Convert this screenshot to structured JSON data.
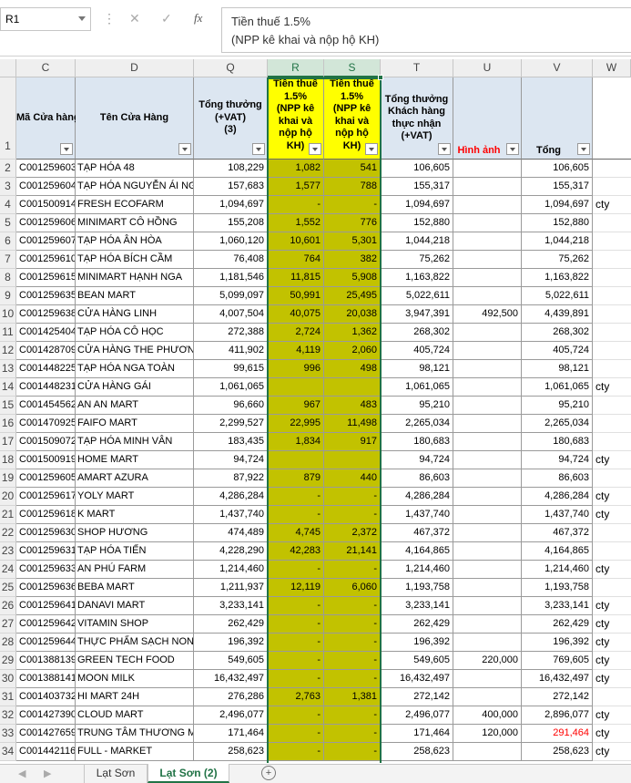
{
  "formula_bar": {
    "name_box": "R1",
    "fx_label": "fx",
    "formula_lines": [
      "Tiền thuế 1.5%",
      "(NPP kê khai và nộp hộ KH)"
    ]
  },
  "sheet": {
    "column_letters": [
      "C",
      "D",
      "Q",
      "R",
      "S",
      "T",
      "U",
      "V",
      "W"
    ],
    "header_row": {
      "n": "1",
      "cells": [
        [
          "Mã Cửa hàng"
        ],
        [
          "Tên Cửa Hàng"
        ],
        [
          "Tổng thưởng",
          "(+VAT)",
          "(3)"
        ],
        [
          "Tiền thuế",
          "1.5%",
          "(NPP kê",
          "khai và",
          "nộp hộ",
          "KH)"
        ],
        [
          "Tiền thuế",
          "1.5%",
          "(NPP kê",
          "khai và",
          "nộp hộ",
          "KH)"
        ],
        [
          "Tổng thưởng",
          "Khách hàng",
          "thực nhận",
          "(+VAT)"
        ],
        [
          "Hình ảnh"
        ],
        [
          "Tổng"
        ],
        null
      ],
      "red_header_color": "#ff0000"
    },
    "rows": [
      {
        "n": "2",
        "cells": [
          "C001259603",
          "TẠP HÓA 48",
          "108,229",
          "1,082",
          "541",
          "106,605",
          null,
          "106,605",
          null
        ]
      },
      {
        "n": "3",
        "cells": [
          "C001259604",
          "TẠP HÓA NGUYỄN ÁI NGH",
          "157,683",
          "1,577",
          "788",
          "155,317",
          null,
          "155,317",
          null
        ]
      },
      {
        "n": "4",
        "cells": [
          "C001500914",
          "FRESH ECOFARM",
          "1,094,697",
          "-",
          "-",
          "1,094,697",
          null,
          "1,094,697",
          "cty"
        ]
      },
      {
        "n": "5",
        "cells": [
          "C001259606",
          "MINIMART CÔ HỒNG",
          "155,208",
          "1,552",
          "776",
          "152,880",
          null,
          "152,880",
          null
        ]
      },
      {
        "n": "6",
        "cells": [
          "C001259607",
          "TẠP HÓA ÂN HÒA",
          "1,060,120",
          "10,601",
          "5,301",
          "1,044,218",
          null,
          "1,044,218",
          null
        ]
      },
      {
        "n": "7",
        "cells": [
          "C001259610",
          "TẠP HÓA BÍCH CẦM",
          "76,408",
          "764",
          "382",
          "75,262",
          null,
          "75,262",
          null
        ]
      },
      {
        "n": "8",
        "cells": [
          "C001259615",
          "MINIMART HẠNH NGA",
          "1,181,546",
          "11,815",
          "5,908",
          "1,163,822",
          null,
          "1,163,822",
          null
        ]
      },
      {
        "n": "9",
        "cells": [
          "C001259635",
          "BEAN MART",
          "5,099,097",
          "50,991",
          "25,495",
          "5,022,611",
          null,
          "5,022,611",
          null
        ]
      },
      {
        "n": "10",
        "cells": [
          "C001259638",
          "CỬA HÀNG LINH",
          "4,007,504",
          "40,075",
          "20,038",
          "3,947,391",
          "492,500",
          "4,439,891",
          null
        ]
      },
      {
        "n": "11",
        "cells": [
          "C001425404",
          "TẠP HÓA CÔ HỌC",
          "272,388",
          "2,724",
          "1,362",
          "268,302",
          null,
          "268,302",
          null
        ]
      },
      {
        "n": "12",
        "cells": [
          "C001428709",
          "CỬA HÀNG THE PHƯƠNG",
          "411,902",
          "4,119",
          "2,060",
          "405,724",
          null,
          "405,724",
          null
        ]
      },
      {
        "n": "13",
        "cells": [
          "C001448225",
          "TẠP HÓA NGA TOÀN",
          "99,615",
          "996",
          "498",
          "98,121",
          null,
          "98,121",
          null
        ]
      },
      {
        "n": "14",
        "cells": [
          "C001448231",
          "CỬA HÀNG GÁI",
          "1,061,065",
          null,
          null,
          "1,061,065",
          null,
          "1,061,065",
          "cty"
        ]
      },
      {
        "n": "15",
        "cells": [
          "C001454562",
          "AN AN MART",
          "96,660",
          "967",
          "483",
          "95,210",
          null,
          "95,210",
          null
        ]
      },
      {
        "n": "16",
        "cells": [
          "C001470925",
          "FAIFO MART",
          "2,299,527",
          "22,995",
          "11,498",
          "2,265,034",
          null,
          "2,265,034",
          null
        ]
      },
      {
        "n": "17",
        "cells": [
          "C001509072",
          "TẠP HÓA MINH VÂN",
          "183,435",
          "1,834",
          "917",
          "180,683",
          null,
          "180,683",
          null
        ]
      },
      {
        "n": "18",
        "cells": [
          "C001500919",
          "HOME MART",
          "94,724",
          null,
          null,
          "94,724",
          null,
          "94,724",
          "cty"
        ]
      },
      {
        "n": "19",
        "cells": [
          "C001259605",
          "AMART AZURA",
          "87,922",
          "879",
          "440",
          "86,603",
          null,
          "86,603",
          null
        ]
      },
      {
        "n": "20",
        "cells": [
          "C001259617",
          "YOLY MART",
          "4,286,284",
          "-",
          "-",
          "4,286,284",
          null,
          "4,286,284",
          "cty"
        ]
      },
      {
        "n": "21",
        "cells": [
          "C001259618",
          "K MART",
          "1,437,740",
          "-",
          "-",
          "1,437,740",
          null,
          "1,437,740",
          "cty"
        ]
      },
      {
        "n": "22",
        "cells": [
          "C001259630",
          "SHOP HƯƠNG",
          "474,489",
          "4,745",
          "2,372",
          "467,372",
          null,
          "467,372",
          null
        ]
      },
      {
        "n": "23",
        "cells": [
          "C001259631",
          "TẠP HÓA TIẾN",
          "4,228,290",
          "42,283",
          "21,141",
          "4,164,865",
          null,
          "4,164,865",
          null
        ]
      },
      {
        "n": "24",
        "cells": [
          "C001259633",
          "AN PHÚ FARM",
          "1,214,460",
          "-",
          "-",
          "1,214,460",
          null,
          "1,214,460",
          "cty"
        ]
      },
      {
        "n": "25",
        "cells": [
          "C001259636",
          "BEBA MART",
          "1,211,937",
          "12,119",
          "6,060",
          "1,193,758",
          null,
          "1,193,758",
          null
        ]
      },
      {
        "n": "26",
        "cells": [
          "C001259641",
          "DANAVI MART",
          "3,233,141",
          "-",
          "-",
          "3,233,141",
          null,
          "3,233,141",
          "cty"
        ]
      },
      {
        "n": "27",
        "cells": [
          "C001259642",
          "VITAMIN SHOP",
          "262,429",
          "-",
          "-",
          "262,429",
          null,
          "262,429",
          "cty"
        ]
      },
      {
        "n": "28",
        "cells": [
          "C001259644",
          "THỰC PHẨM SẠCH NONG",
          "196,392",
          "-",
          "-",
          "196,392",
          null,
          "196,392",
          "cty"
        ]
      },
      {
        "n": "29",
        "cells": [
          "C001388139",
          "GREEN TECH FOOD",
          "549,605",
          "-",
          "-",
          "549,605",
          "220,000",
          "769,605",
          "cty"
        ]
      },
      {
        "n": "30",
        "cells": [
          "C001388141",
          "MOON MILK",
          "16,432,497",
          "-",
          "-",
          "16,432,497",
          null,
          "16,432,497",
          "cty"
        ]
      },
      {
        "n": "31",
        "cells": [
          "C001403732",
          "HI MART 24H",
          "276,286",
          "2,763",
          "1,381",
          "272,142",
          null,
          "272,142",
          null
        ]
      },
      {
        "n": "32",
        "cells": [
          "C001427390",
          "CLOUD MART",
          "2,496,077",
          "-",
          "-",
          "2,496,077",
          "400,000",
          "2,896,077",
          "cty"
        ]
      },
      {
        "n": "33",
        "cells": [
          "C001427659",
          "TRUNG TÂM THƯƠNG MA",
          "171,464",
          "-",
          "-",
          "171,464",
          "120,000",
          {
            "text": "291,464",
            "color": "#ff0000"
          },
          "cty"
        ]
      },
      {
        "n": "34",
        "cells": [
          "C001442116",
          "FULL - MARKET",
          "258,623",
          "-",
          "-",
          "258,623",
          null,
          "258,623",
          "cty"
        ]
      }
    ]
  },
  "tabs": [
    "Lạt Sơn",
    "Lạt Sơn (2)"
  ]
}
